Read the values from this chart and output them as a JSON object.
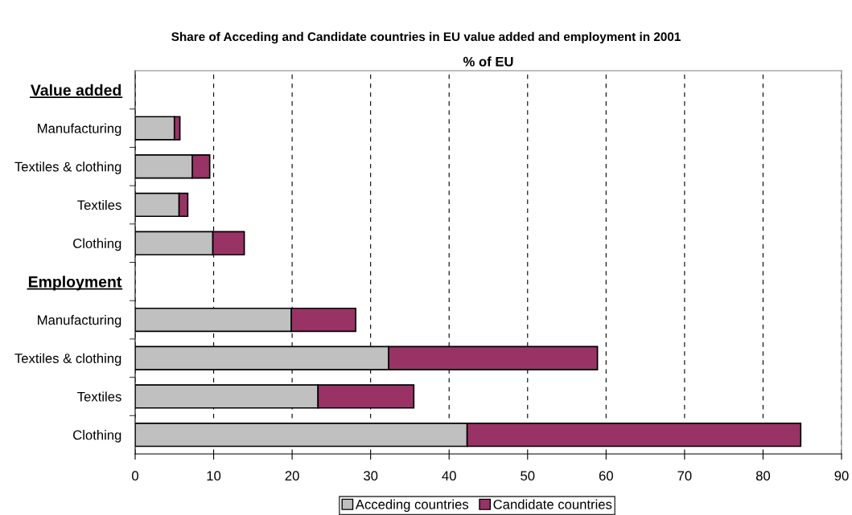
{
  "chart_data": {
    "type": "bar",
    "orientation": "horizontal",
    "stacked": true,
    "title": "Share of Acceding and Candidate countries in EU value added and employment in 2001",
    "xlabel": "% of EU",
    "categories": [
      "Value added",
      "Manufacturing",
      "Textiles & clothing",
      "Textiles",
      "Clothing",
      "Employment",
      "Manufacturing",
      "Textiles & clothing",
      "Textiles",
      "Clothing"
    ],
    "series": [
      {
        "name": "Acceding countries",
        "color": "#c0c0c0",
        "values": [
          null,
          5.0,
          7.3,
          5.6,
          9.9,
          null,
          19.9,
          32.3,
          23.3,
          42.3
        ]
      },
      {
        "name": "Candidate countries",
        "color": "#993366",
        "values": [
          null,
          0.7,
          2.2,
          1.1,
          4.0,
          null,
          8.2,
          26.6,
          12.2,
          42.5
        ]
      }
    ],
    "xlim": [
      0,
      90
    ],
    "xticks": [
      0,
      10,
      20,
      30,
      40,
      50,
      60,
      70,
      80,
      90
    ],
    "grid": "x",
    "line_style": "dashed",
    "legend": "bottom"
  }
}
